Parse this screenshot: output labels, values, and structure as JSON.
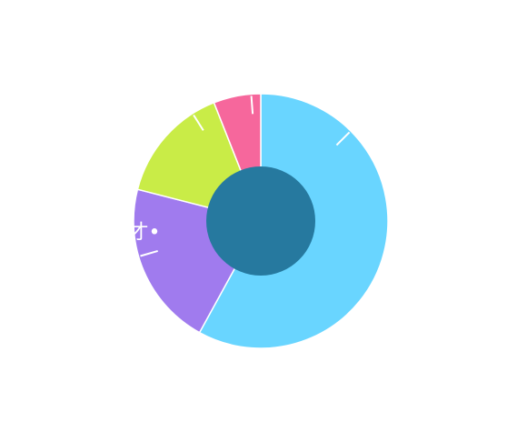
{
  "chart_data": {
    "type": "pie",
    "variant": "donut",
    "categories": [
      "",
      "",
      "",
      ""
    ],
    "values": [
      58,
      21,
      15,
      6
    ],
    "colors": [
      "#69d5ff",
      "#a07bee",
      "#c9ec47",
      "#f6679c"
    ],
    "center_color": "#26799f",
    "slice_labels": [
      "",
      "才•",
      "",
      ""
    ],
    "start_angle_deg": 0,
    "direction": "clockwise",
    "legend": "none",
    "title": ""
  }
}
